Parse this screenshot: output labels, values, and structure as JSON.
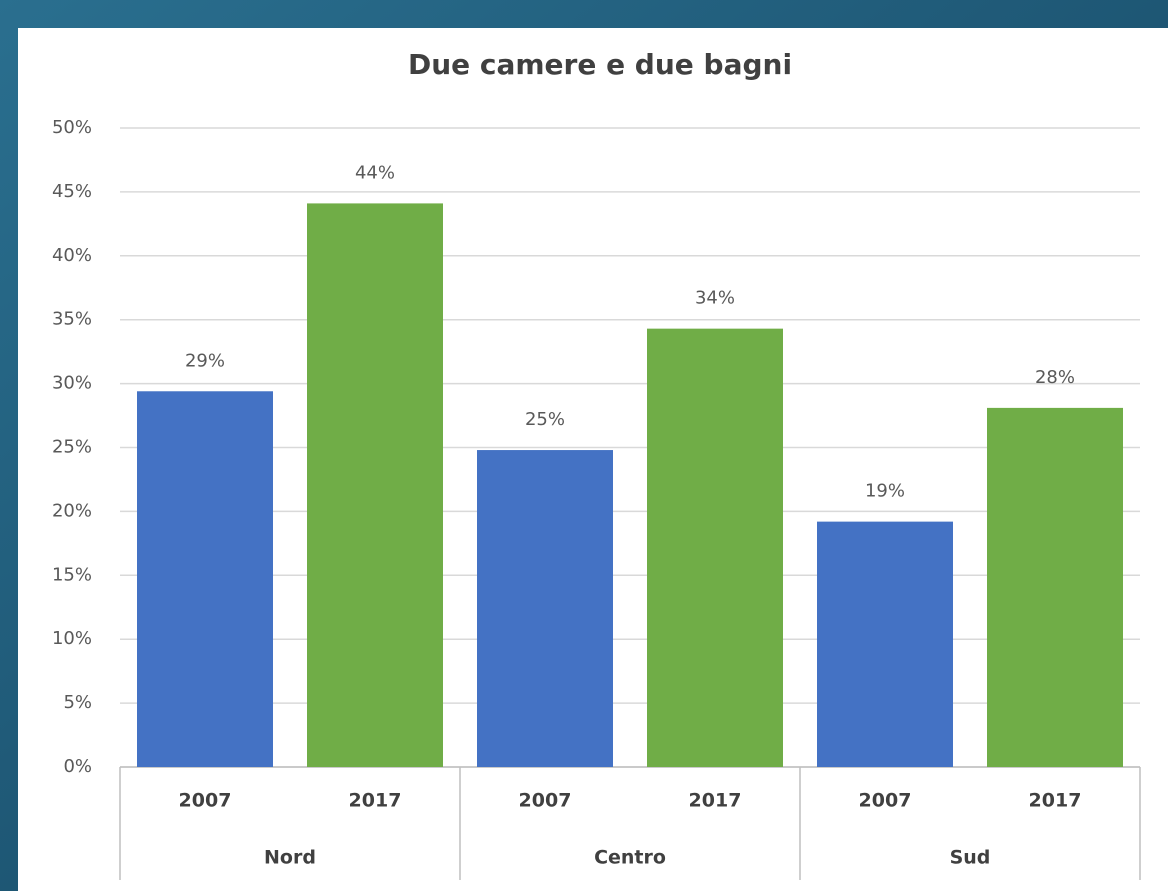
{
  "chart_data": {
    "type": "bar",
    "title": "Due camere e due bagni",
    "groups": [
      {
        "name": "Nord",
        "categories": [
          "2007",
          "2017"
        ],
        "values": [
          29.4,
          44.1
        ],
        "value_labels": [
          "29%",
          "44%"
        ],
        "colors": [
          "#4472c4",
          "#70ad47"
        ]
      },
      {
        "name": "Centro",
        "categories": [
          "2007",
          "2017"
        ],
        "values": [
          24.8,
          34.3
        ],
        "value_labels": [
          "25%",
          "34%"
        ],
        "colors": [
          "#4472c4",
          "#70ad47"
        ]
      },
      {
        "name": "Sud",
        "categories": [
          "2007",
          "2017"
        ],
        "values": [
          19.2,
          28.1
        ],
        "value_labels": [
          "19%",
          "28%"
        ],
        "colors": [
          "#4472c4",
          "#70ad47"
        ]
      }
    ],
    "ylim": [
      0,
      50
    ],
    "yticks": [
      {
        "value": 0,
        "label": "0%"
      },
      {
        "value": 5,
        "label": "5%"
      },
      {
        "value": 10,
        "label": "10%"
      },
      {
        "value": 15,
        "label": "15%"
      },
      {
        "value": 20,
        "label": "20%"
      },
      {
        "value": 25,
        "label": "25%"
      },
      {
        "value": 30,
        "label": "30%"
      },
      {
        "value": 35,
        "label": "35%"
      },
      {
        "value": 40,
        "label": "40%"
      },
      {
        "value": 45,
        "label": "45%"
      },
      {
        "value": 50,
        "label": "50%"
      }
    ],
    "grid": true
  }
}
